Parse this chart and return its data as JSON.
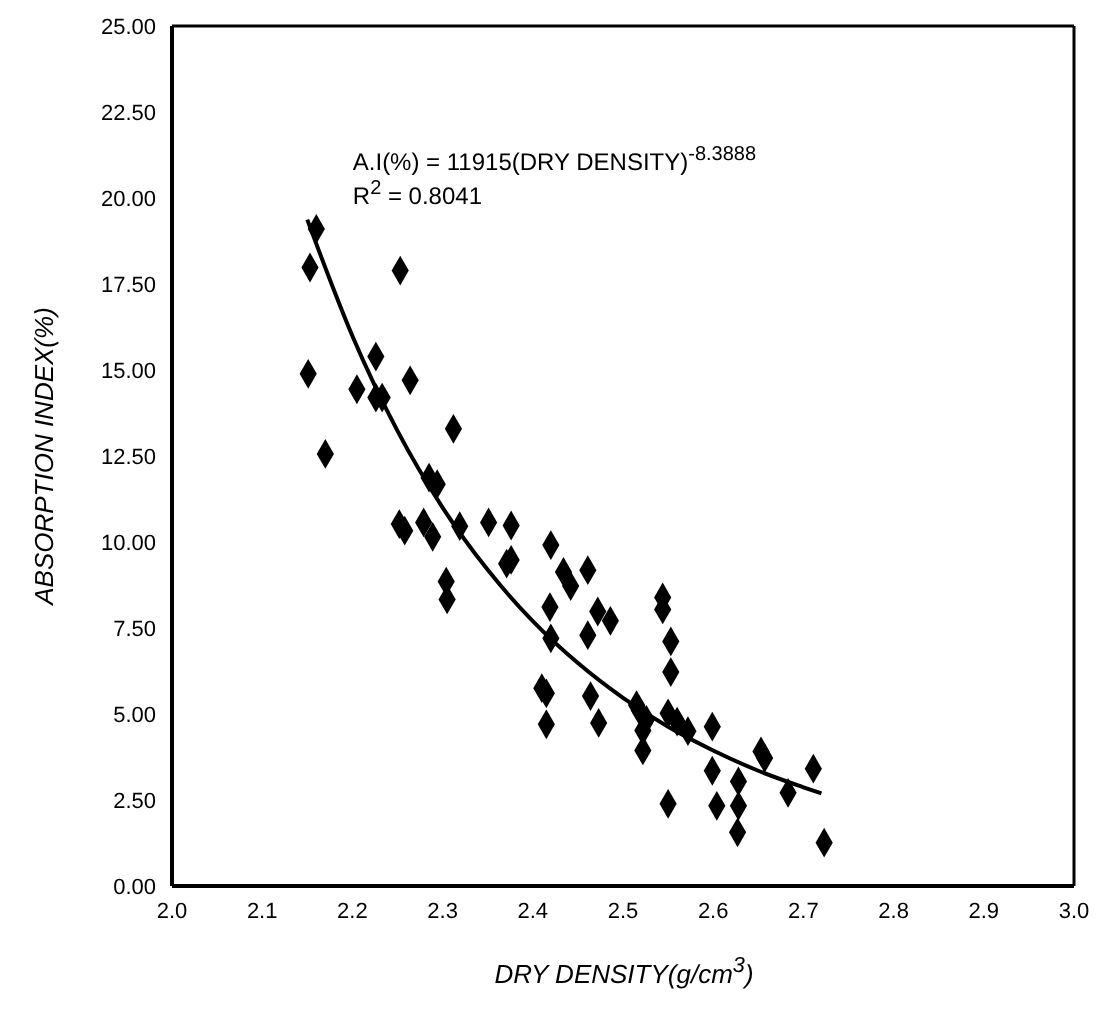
{
  "chart_data": {
    "type": "scatter",
    "xlabel": "DRY DENSITY(g/cm$^{3}$)",
    "ylabel": "ABSORPTION INDEX(%)",
    "annotations": [
      "A.I(%) = 11915(DRY DENSITY)$^{-8.3888}$",
      "R$^{2}$ = 0.8041"
    ],
    "xlim": [
      2.0,
      3.0
    ],
    "ylim": [
      0,
      25
    ],
    "xticks": [
      {
        "value": 2,
        "label": "2.0"
      },
      {
        "value": 2.1,
        "label": "2.1"
      },
      {
        "value": 2.2,
        "label": "2.2"
      },
      {
        "value": 2.3,
        "label": "2.3"
      },
      {
        "value": 2.4,
        "label": "2.4"
      },
      {
        "value": 2.5,
        "label": "2.5"
      },
      {
        "value": 2.6,
        "label": "2.6"
      },
      {
        "value": 2.7,
        "label": "2.7"
      },
      {
        "value": 2.8,
        "label": "2.8"
      },
      {
        "value": 2.9,
        "label": "2.9"
      },
      {
        "value": 3,
        "label": "3.0"
      }
    ],
    "yticks": [
      {
        "value": 0,
        "label": "0.00"
      },
      {
        "value": 2.5,
        "label": "2.50"
      },
      {
        "value": 5,
        "label": "5.00"
      },
      {
        "value": 7.5,
        "label": "7.50"
      },
      {
        "value": 10,
        "label": "10.00"
      },
      {
        "value": 12.5,
        "label": "12.50"
      },
      {
        "value": 15,
        "label": "15.00"
      },
      {
        "value": 17.5,
        "label": "17.50"
      },
      {
        "value": 20,
        "label": "20.00"
      },
      {
        "value": 22.5,
        "label": "22.50"
      },
      {
        "value": 25,
        "label": "25.00"
      }
    ],
    "marker": "diamond",
    "series": [
      {
        "color": "#000000",
        "x": [
          2.16,
          2.153,
          2.253,
          2.226,
          2.151,
          2.205,
          2.226,
          2.233,
          2.264,
          2.312,
          2.17,
          2.285,
          2.294,
          2.252,
          2.258,
          2.279,
          2.289,
          2.319,
          2.351,
          2.376,
          2.42,
          2.371,
          2.376,
          2.434,
          2.461,
          2.442,
          2.304,
          2.305,
          2.419,
          2.472,
          2.486,
          2.461,
          2.42,
          2.41,
          2.415,
          2.415,
          2.544,
          2.544,
          2.553,
          2.553,
          2.464,
          2.473,
          2.515,
          2.518,
          2.526,
          2.522,
          2.522,
          2.55,
          2.56,
          2.572,
          2.599,
          2.599,
          2.55,
          2.604,
          2.628,
          2.628,
          2.627,
          2.653,
          2.657,
          2.683,
          2.711,
          2.723
        ],
        "values": [
          19.1,
          17.98,
          17.89,
          15.39,
          14.89,
          14.44,
          14.2,
          14.2,
          14.7,
          13.29,
          12.56,
          11.87,
          11.68,
          10.52,
          10.33,
          10.57,
          10.15,
          10.46,
          10.57,
          10.48,
          9.91,
          9.37,
          9.48,
          9.13,
          9.18,
          8.72,
          8.85,
          8.33,
          8.11,
          7.98,
          7.71,
          7.29,
          7.2,
          5.75,
          5.6,
          4.7,
          8.39,
          8.04,
          7.11,
          6.22,
          5.52,
          4.74,
          5.26,
          5.11,
          4.83,
          4.52,
          3.94,
          5.02,
          4.78,
          4.5,
          4.63,
          3.35,
          2.39,
          2.33,
          3.04,
          2.33,
          1.56,
          3.91,
          3.72,
          2.71,
          3.41,
          1.26
        ]
      },
      {
        "type": "line",
        "color": "#000000",
        "marker": "none",
        "x": [
          2.15,
          2.2,
          2.25,
          2.3,
          2.35,
          2.4,
          2.45,
          2.5,
          2.55,
          2.6,
          2.65,
          2.7,
          2.72
        ],
        "values": [
          19.37,
          15.99,
          13.23,
          11.0,
          9.19,
          7.7,
          6.48,
          5.47,
          4.63,
          3.94,
          3.35,
          2.87,
          2.69
        ]
      }
    ]
  }
}
